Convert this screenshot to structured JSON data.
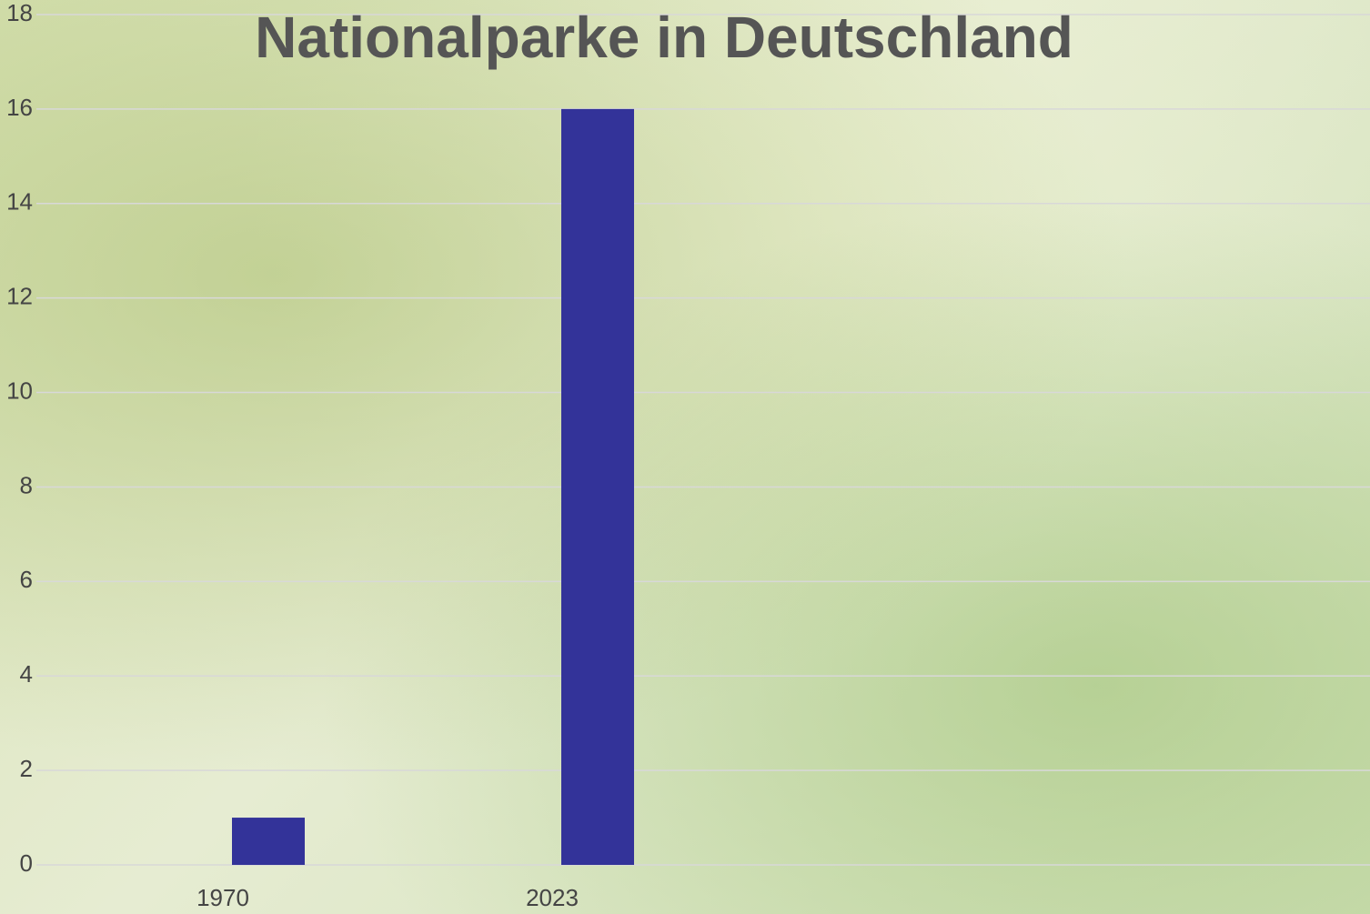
{
  "chart_data": {
    "type": "bar",
    "title": "Nationalparke in Deutschland",
    "categories": [
      "1970",
      "2023"
    ],
    "values": [
      1,
      16
    ],
    "color": "#333399",
    "ylim": [
      0,
      18
    ],
    "yticks": [
      0,
      2,
      4,
      6,
      8,
      10,
      12,
      14,
      16,
      18
    ],
    "grid": true
  }
}
